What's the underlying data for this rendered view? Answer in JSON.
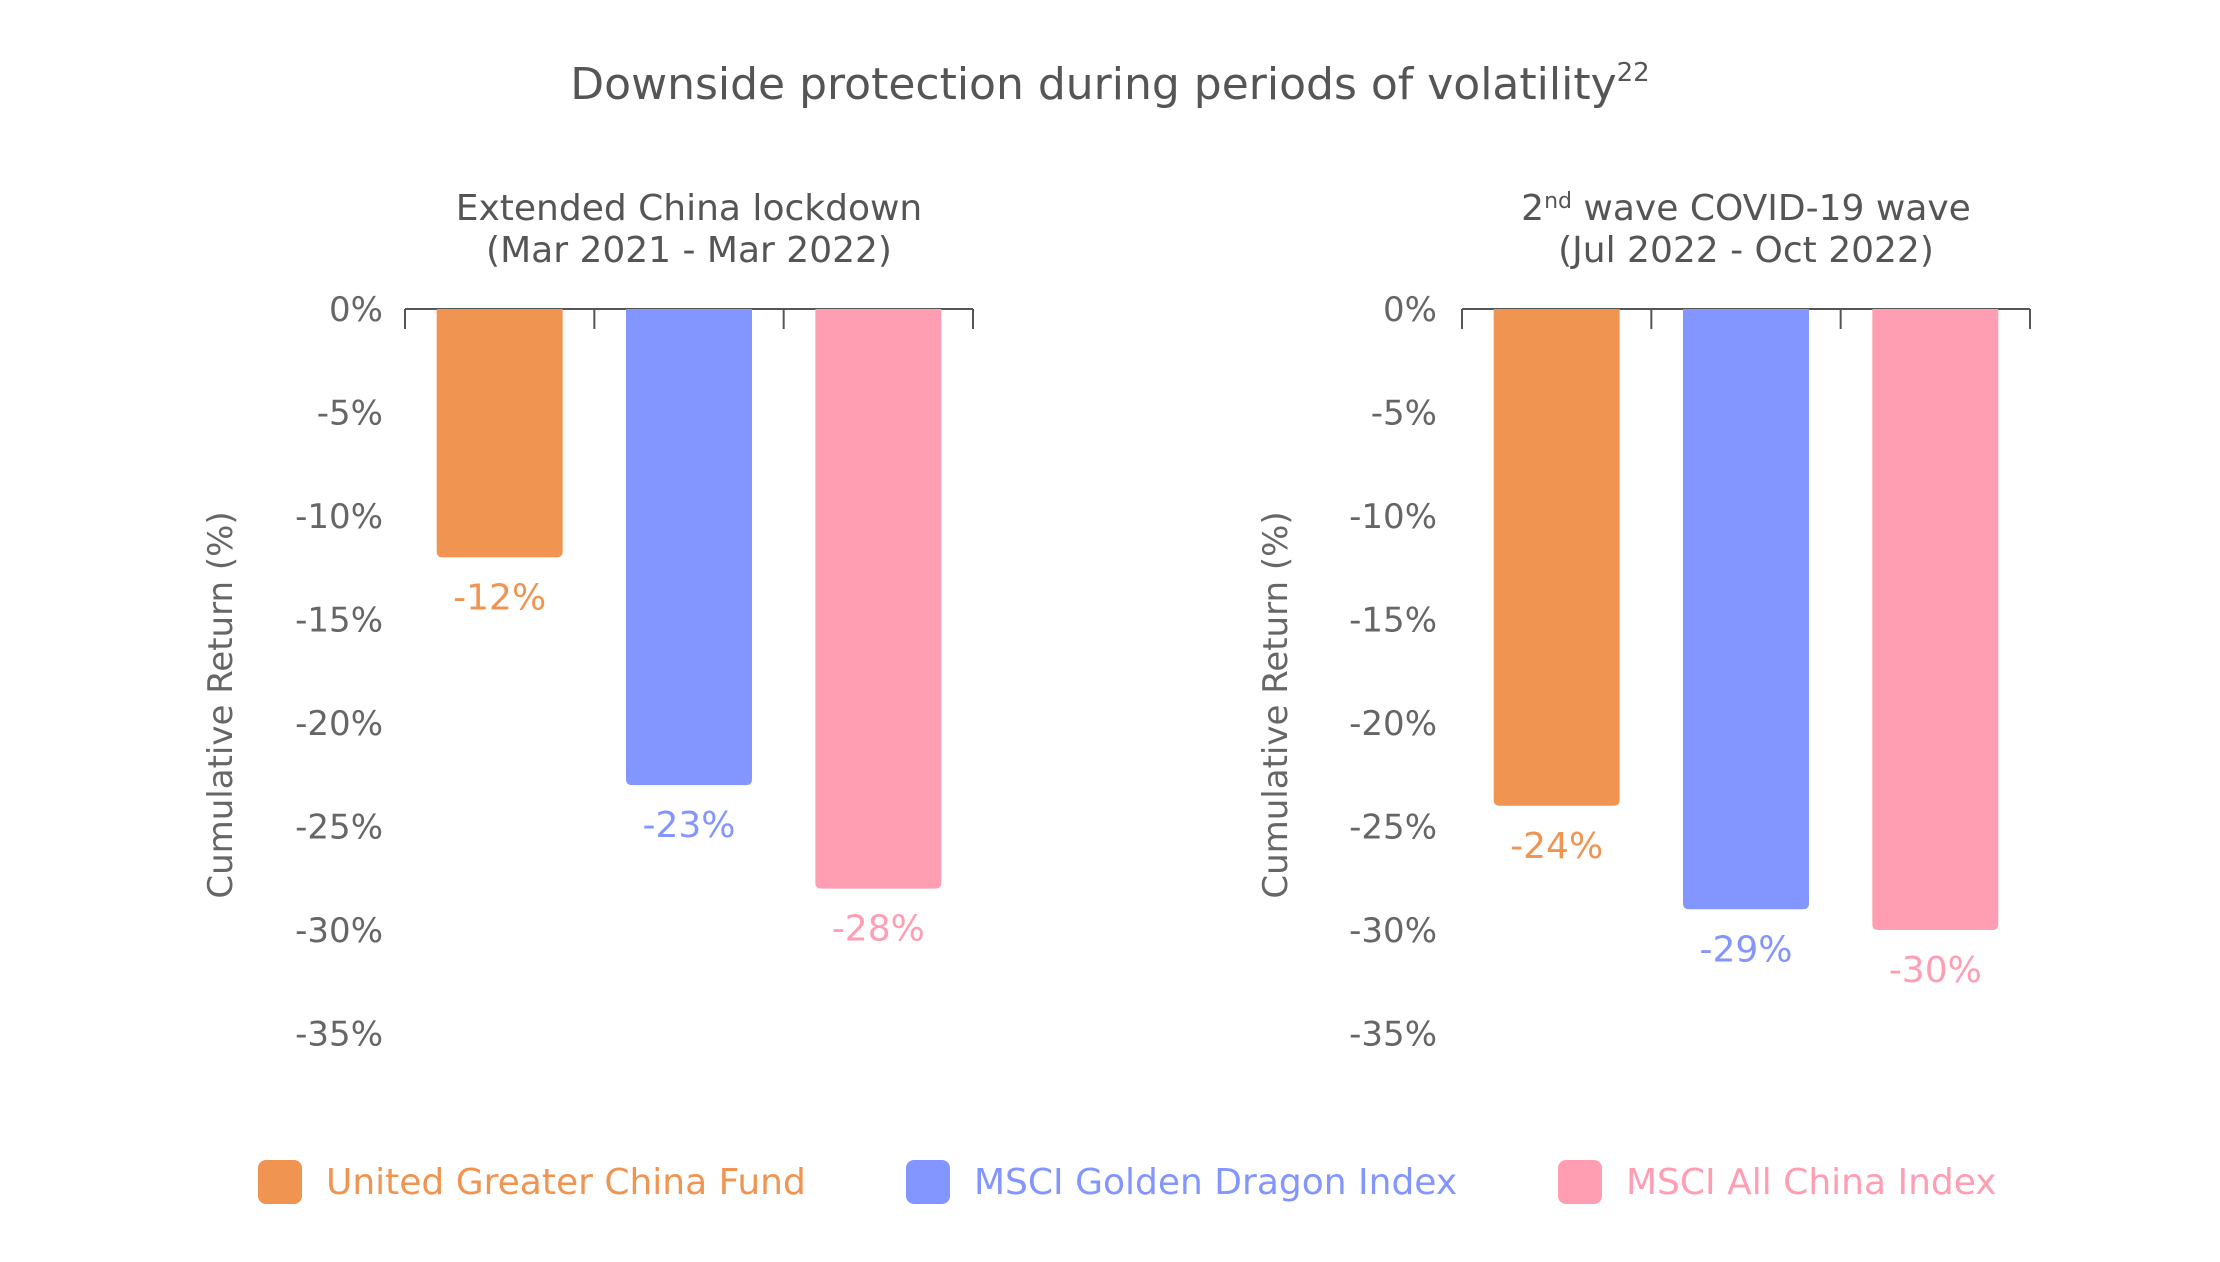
{
  "title": "Downside protection during periods of volatility",
  "title_superscript": "22",
  "chart_data": [
    {
      "type": "bar",
      "title_line1": "Extended China lockdown",
      "title_line2": "(Mar 2021 - Mar 2022)",
      "ylabel": "Cumulative Return (%)",
      "ylim": [
        -35,
        0
      ],
      "yticks": [
        0,
        -5,
        -10,
        -15,
        -20,
        -25,
        -30,
        -35
      ],
      "ytick_labels": [
        "0%",
        "-5%",
        "-10%",
        "-15%",
        "-20%",
        "-25%",
        "-30%",
        "-35%"
      ],
      "series": [
        {
          "name": "United Greater China Fund",
          "value": -12,
          "label": "-12%",
          "color": "#F09452"
        },
        {
          "name": "MSCI Golden Dragon Index",
          "value": -23,
          "label": "-23%",
          "color": "#8395FF"
        },
        {
          "name": "MSCI All China Index",
          "value": -28,
          "label": "-28%",
          "color": "#FF9DB2"
        }
      ],
      "grid": false
    },
    {
      "type": "bar",
      "title_prefix": "2",
      "title_superscript": "nd",
      "title_line1_rest": " wave COVID-19 wave",
      "title_line2": "(Jul 2022 - Oct 2022)",
      "ylabel": "Cumulative Return (%)",
      "ylim": [
        -35,
        0
      ],
      "yticks": [
        0,
        -5,
        -10,
        -15,
        -20,
        -25,
        -30,
        -35
      ],
      "ytick_labels": [
        "0%",
        "-5%",
        "-10%",
        "-15%",
        "-20%",
        "-25%",
        "-30%",
        "-35%"
      ],
      "series": [
        {
          "name": "United Greater China Fund",
          "value": -24,
          "label": "-24%",
          "color": "#F09452"
        },
        {
          "name": "MSCI Golden Dragon Index",
          "value": -29,
          "label": "-29%",
          "color": "#8395FF"
        },
        {
          "name": "MSCI All China Index",
          "value": -30,
          "label": "-30%",
          "color": "#FF9DB2"
        }
      ],
      "grid": false
    }
  ],
  "legend": {
    "placement": "bottom",
    "items": [
      {
        "label": "United Greater China Fund",
        "color": "#F09452"
      },
      {
        "label": "MSCI Golden Dragon Index",
        "color": "#8395FF"
      },
      {
        "label": "MSCI All China Index",
        "color": "#FF9DB2"
      }
    ]
  }
}
